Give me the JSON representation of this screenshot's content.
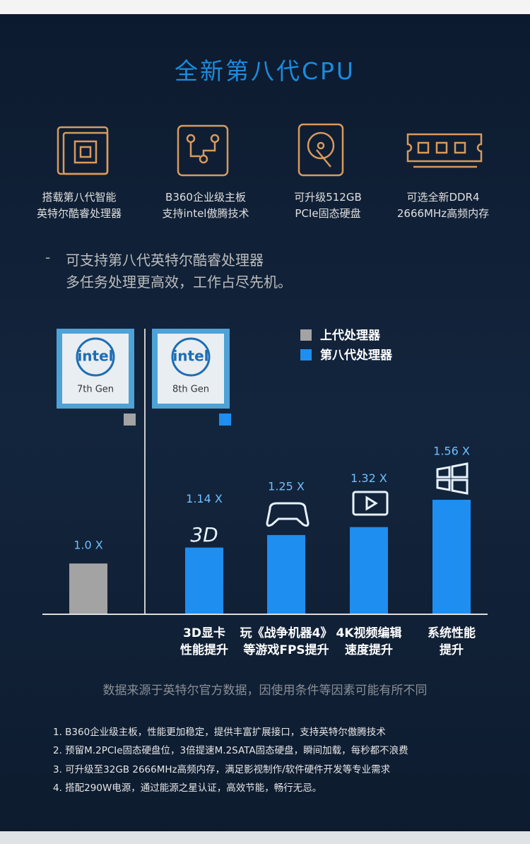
{
  "header": {
    "title": "全新第八代CPU"
  },
  "features": [
    {
      "lines": [
        "搭载第八代智能",
        "英特尔酷睿处理器"
      ]
    },
    {
      "lines": [
        "B360企业级主板",
        "支持intel傲腾技术"
      ]
    },
    {
      "lines": [
        "可升级512GB",
        "PCIe固态硬盘"
      ]
    },
    {
      "lines": [
        "可选全新DDR4",
        "2666MHz高频内存"
      ]
    }
  ],
  "subtitle": {
    "dash": "-",
    "lines": [
      "可支持第八代英特尔酷睿处理器",
      "多任务处理更高效，工作占尽先机。"
    ]
  },
  "badges": [
    {
      "brand": "intel",
      "gen": "7th Gen"
    },
    {
      "brand": "intel",
      "gen": "8th Gen"
    }
  ],
  "chart_data": {
    "type": "bar",
    "categories": [
      null,
      "3D显卡\n性能提升",
      "玩《战争机器4》\n等游戏FPS提升",
      "4K视频编辑\n速度提升",
      "系统性能\n提升"
    ],
    "series": [
      {
        "name": "上代处理器",
        "color": "#a3a3a3",
        "values": [
          1.0,
          null,
          null,
          null,
          null
        ],
        "value_labels": [
          "1.0 X",
          null,
          null,
          null,
          null
        ]
      },
      {
        "name": "第八代处理器",
        "color": "#1e8ef0",
        "values": [
          null,
          1.14,
          1.25,
          1.32,
          1.56
        ],
        "value_labels": [
          null,
          "1.14 X",
          "1.25 X",
          "1.32 X",
          "1.56 X"
        ]
      }
    ],
    "ylim": [
      0.56,
      2.2
    ],
    "annotation": "3D"
  },
  "note": "数据来源于英特尔官方数据，因使用条件等因素可能有所不同",
  "list": [
    "1. B360企业级主板，性能更加稳定，提供丰富扩展接口，支持英特尔傲腾技术",
    "2. 预留M.2PCIe固态硬盘位，3倍提速M.2SATA固态硬盘，瞬间加载，每秒都不浪费",
    "3. 可升级至32GB 2666MHz高频内存，满足影视制作/软件硬件开发等专业需求",
    "4. 搭配290W电源，通过能源之星认证，高效节能，畅行无忌。"
  ]
}
